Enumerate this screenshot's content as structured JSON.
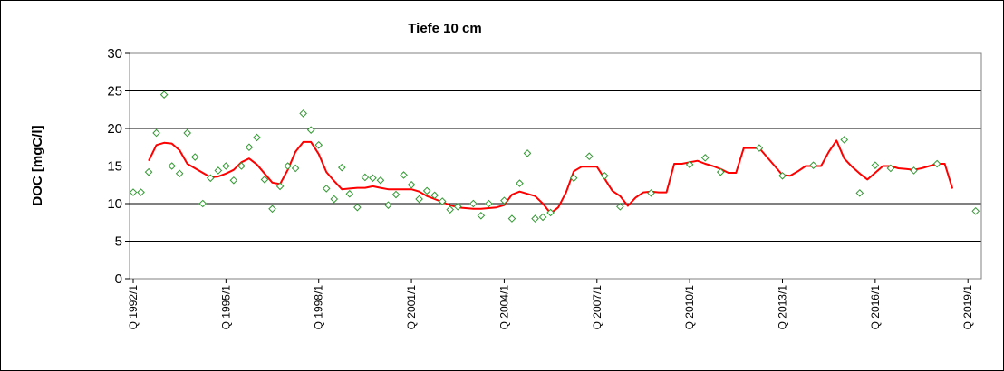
{
  "chart_data": {
    "type": "line",
    "title": "Tiefe  10 cm",
    "ylabel": "DOC [mgC/l]",
    "xlabel": "",
    "ylim": [
      0,
      30
    ],
    "yticks": [
      0,
      5,
      10,
      15,
      20,
      25,
      30
    ],
    "xticks": [
      "Q 1992/1",
      "Q 1995/1",
      "Q 1998/1",
      "Q 2001/1",
      "Q 2004/1",
      "Q 2007/1",
      "Q 2010/1",
      "Q 2013/1",
      "Q 2016/1",
      "Q 2019/1"
    ],
    "x_unit": "quarter index (0 = Q 1992/1)",
    "grid": true,
    "legend": "none",
    "colors": {
      "line": "#ff0000",
      "points": "#339933",
      "grid": "#000000",
      "frame": "#808080"
    },
    "series": [
      {
        "kind": "scatter",
        "marker": "diamond",
        "points": [
          [
            0,
            11.5
          ],
          [
            1,
            11.5
          ],
          [
            2,
            14.2
          ],
          [
            3,
            19.4
          ],
          [
            4,
            24.5
          ],
          [
            5,
            15.0
          ],
          [
            6,
            14.0
          ],
          [
            7,
            19.4
          ],
          [
            8,
            16.2
          ],
          [
            9,
            10.0
          ],
          [
            10,
            13.4
          ],
          [
            11,
            14.4
          ],
          [
            12,
            15.0
          ],
          [
            13,
            13.1
          ],
          [
            14,
            15.0
          ],
          [
            15,
            17.5
          ],
          [
            16,
            18.8
          ],
          [
            17,
            13.2
          ],
          [
            18,
            9.3
          ],
          [
            19,
            12.3
          ],
          [
            20,
            15.0
          ],
          [
            21,
            14.7
          ],
          [
            22,
            22.0
          ],
          [
            23,
            19.8
          ],
          [
            24,
            17.8
          ],
          [
            25,
            12.0
          ],
          [
            26,
            10.6
          ],
          [
            27,
            14.8
          ],
          [
            28,
            11.3
          ],
          [
            29,
            9.5
          ],
          [
            30,
            13.5
          ],
          [
            31,
            13.4
          ],
          [
            32,
            13.1
          ],
          [
            33,
            9.8
          ],
          [
            34,
            11.2
          ],
          [
            35,
            13.8
          ],
          [
            36,
            12.5
          ],
          [
            37,
            10.6
          ],
          [
            38,
            11.7
          ],
          [
            39,
            11.1
          ],
          [
            40,
            10.3
          ],
          [
            41,
            9.2
          ],
          [
            42,
            9.6
          ],
          [
            44,
            10.0
          ],
          [
            45,
            8.4
          ],
          [
            46,
            10.0
          ],
          [
            48,
            10.4
          ],
          [
            49,
            8.0
          ],
          [
            50,
            12.7
          ],
          [
            51,
            16.7
          ],
          [
            52,
            8.0
          ],
          [
            53,
            8.2
          ],
          [
            54,
            8.8
          ],
          [
            57,
            13.4
          ],
          [
            59,
            16.3
          ],
          [
            61,
            13.7
          ],
          [
            63,
            9.6
          ],
          [
            67,
            11.4
          ],
          [
            72,
            15.2
          ],
          [
            74,
            16.1
          ],
          [
            76,
            14.2
          ],
          [
            81,
            17.4
          ],
          [
            84,
            13.7
          ],
          [
            88,
            15.1
          ],
          [
            92,
            18.5
          ],
          [
            94,
            11.4
          ],
          [
            96,
            15.1
          ],
          [
            98,
            14.7
          ],
          [
            101,
            14.4
          ],
          [
            104,
            15.3
          ],
          [
            109,
            9.0
          ]
        ]
      },
      {
        "kind": "line",
        "points": [
          [
            2,
            15.7
          ],
          [
            3,
            17.8
          ],
          [
            4,
            18.1
          ],
          [
            5,
            18.0
          ],
          [
            6,
            17.1
          ],
          [
            7,
            15.3
          ],
          [
            8,
            14.7
          ],
          [
            9,
            14.1
          ],
          [
            10,
            13.5
          ],
          [
            11,
            13.6
          ],
          [
            12,
            14.0
          ],
          [
            13,
            14.5
          ],
          [
            14,
            15.5
          ],
          [
            15,
            16.0
          ],
          [
            16,
            15.2
          ],
          [
            17,
            14.0
          ],
          [
            18,
            12.8
          ],
          [
            19,
            12.6
          ],
          [
            20,
            14.5
          ],
          [
            21,
            16.9
          ],
          [
            22,
            18.2
          ],
          [
            23,
            18.2
          ],
          [
            24,
            16.6
          ],
          [
            25,
            14.2
          ],
          [
            26,
            13.0
          ],
          [
            27,
            11.9
          ],
          [
            28,
            12.0
          ],
          [
            29,
            12.1
          ],
          [
            30,
            12.1
          ],
          [
            31,
            12.3
          ],
          [
            32,
            12.1
          ],
          [
            33,
            11.9
          ],
          [
            34,
            11.9
          ],
          [
            35,
            11.9
          ],
          [
            36,
            11.9
          ],
          [
            37,
            11.6
          ],
          [
            38,
            11.0
          ],
          [
            39,
            10.6
          ],
          [
            40,
            10.2
          ],
          [
            41,
            9.8
          ],
          [
            42,
            9.5
          ],
          [
            43,
            9.4
          ],
          [
            44,
            9.3
          ],
          [
            45,
            9.3
          ],
          [
            46,
            9.4
          ],
          [
            47,
            9.5
          ],
          [
            48,
            9.8
          ],
          [
            49,
            11.2
          ],
          [
            50,
            11.6
          ],
          [
            51,
            11.3
          ],
          [
            52,
            11.0
          ],
          [
            53,
            10.0
          ],
          [
            54,
            8.7
          ],
          [
            55,
            9.5
          ],
          [
            56,
            11.5
          ],
          [
            57,
            14.3
          ],
          [
            58,
            14.9
          ],
          [
            59,
            14.9
          ],
          [
            60,
            14.9
          ],
          [
            61,
            13.3
          ],
          [
            62,
            11.7
          ],
          [
            63,
            11.0
          ],
          [
            64,
            9.7
          ],
          [
            65,
            10.8
          ],
          [
            66,
            11.5
          ],
          [
            67,
            11.6
          ],
          [
            68,
            11.5
          ],
          [
            69,
            11.5
          ],
          [
            70,
            15.3
          ],
          [
            71,
            15.3
          ],
          [
            72,
            15.5
          ],
          [
            73,
            15.7
          ],
          [
            74,
            15.3
          ],
          [
            75,
            15.0
          ],
          [
            76,
            14.6
          ],
          [
            77,
            14.1
          ],
          [
            78,
            14.1
          ],
          [
            79,
            17.4
          ],
          [
            80,
            17.4
          ],
          [
            81,
            17.4
          ],
          [
            82,
            16.2
          ],
          [
            83,
            15.0
          ],
          [
            84,
            13.8
          ],
          [
            85,
            13.7
          ],
          [
            86,
            14.3
          ],
          [
            87,
            15.0
          ],
          [
            88,
            15.0
          ],
          [
            89,
            15.0
          ],
          [
            90,
            16.9
          ],
          [
            91,
            18.4
          ],
          [
            92,
            16.0
          ],
          [
            93,
            14.9
          ],
          [
            94,
            14.0
          ],
          [
            95,
            13.2
          ],
          [
            96,
            14.1
          ],
          [
            97,
            15.0
          ],
          [
            98,
            15.0
          ],
          [
            99,
            14.7
          ],
          [
            100,
            14.6
          ],
          [
            101,
            14.5
          ],
          [
            102,
            14.7
          ],
          [
            103,
            15.0
          ],
          [
            104,
            15.3
          ],
          [
            105,
            15.3
          ],
          [
            106,
            12.0
          ]
        ]
      }
    ]
  }
}
